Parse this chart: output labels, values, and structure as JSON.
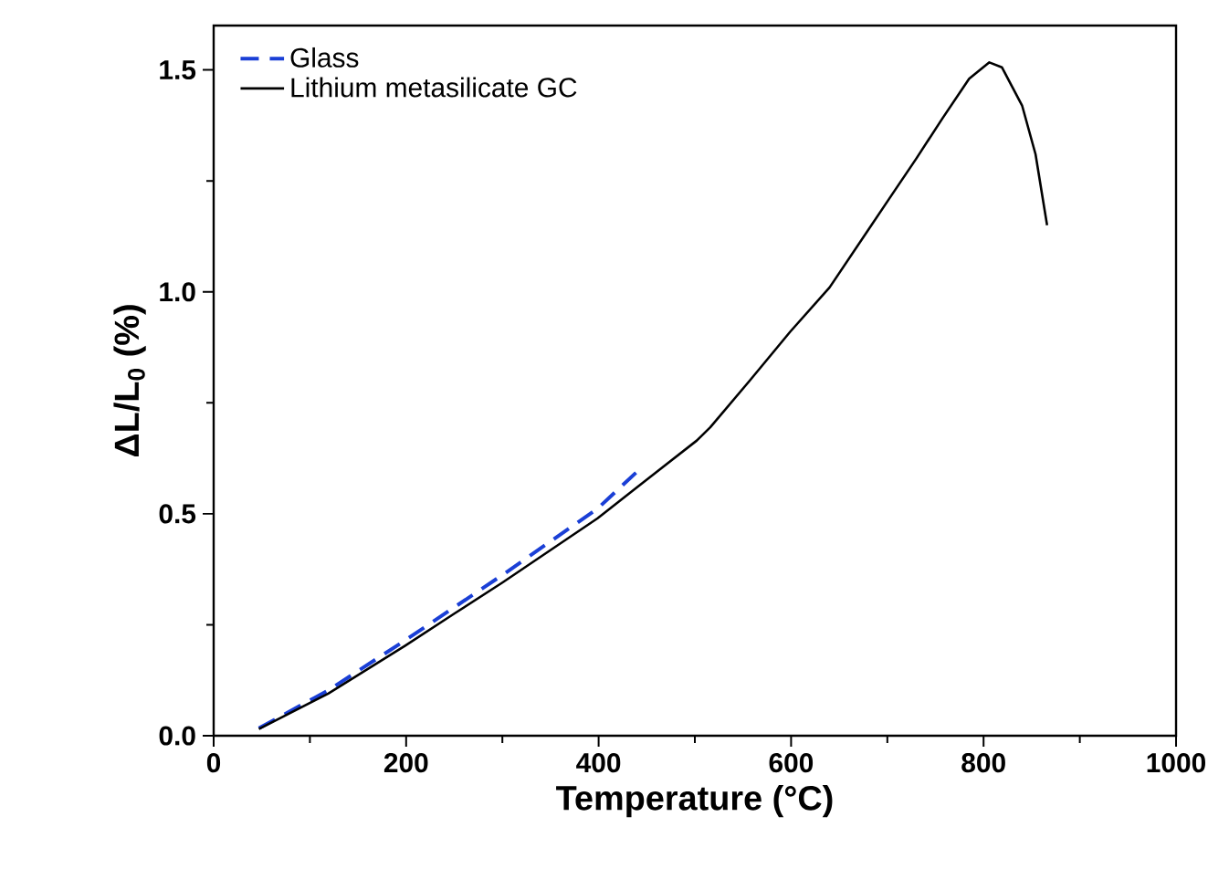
{
  "chart_data": {
    "type": "line",
    "xlabel": "Temperature (°C)",
    "ylabel": "ΔL/L$_{0}$ (%)",
    "xlim": [
      0,
      1000
    ],
    "ylim": [
      0,
      1.6
    ],
    "xticks": [
      0,
      200,
      400,
      600,
      800,
      1000
    ],
    "yticks": [
      {
        "value": 0,
        "label": "0.0"
      },
      0.5,
      {
        "value": 1,
        "label": "1.0"
      },
      1.5
    ],
    "legend": "top left",
    "grid": false,
    "series": [
      {
        "name": "Glass",
        "color": "#1a3fd6",
        "line_style": "dashed",
        "x": [
          47,
          119,
          199,
          302,
          399,
          440
        ],
        "values": [
          0.017,
          0.102,
          0.215,
          0.365,
          0.512,
          0.595
        ]
      },
      {
        "name": "Lithium metasilicate GC",
        "color": "#000000",
        "line_style": "solid",
        "x": [
          47,
          119,
          199,
          250,
          300,
          399,
          440,
          502,
          516,
          557,
          599,
          640,
          702,
          730,
          757,
          785,
          806,
          819,
          840,
          854,
          866
        ],
        "values": [
          0.015,
          0.095,
          0.203,
          0.275,
          0.345,
          0.49,
          0.56,
          0.665,
          0.695,
          0.8,
          0.91,
          1.01,
          1.21,
          1.3,
          1.39,
          1.48,
          1.517,
          1.506,
          1.42,
          1.31,
          1.15
        ]
      }
    ]
  }
}
